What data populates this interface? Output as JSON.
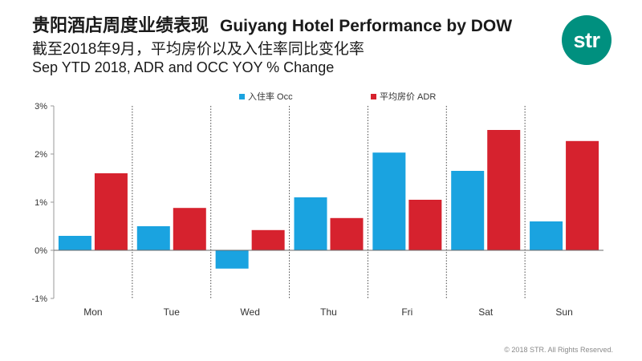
{
  "header": {
    "title_cn": "贵阳酒店周度业绩表现",
    "title_en": "Guiyang Hotel Performance by DOW",
    "subtitle_cn": "截至2018年9月，平均房价以及入住率同比变化率",
    "subtitle_en": "Sep YTD 2018, ADR and OCC YOY % Change"
  },
  "logo": {
    "text": "str",
    "color": "#00907f"
  },
  "footer": {
    "copyright": "© 2018 STR. All Rights Reserved."
  },
  "chart_data": {
    "type": "bar",
    "categories": [
      "Mon",
      "Tue",
      "Wed",
      "Thu",
      "Fri",
      "Sat",
      "Sun"
    ],
    "series": [
      {
        "name": "入住率 Occ",
        "color": "#1aa3e0",
        "values": [
          0.3,
          0.5,
          -0.38,
          1.1,
          2.03,
          1.65,
          0.6
        ]
      },
      {
        "name": "平均房价 ADR",
        "color": "#d6222e",
        "values": [
          1.6,
          0.88,
          0.42,
          0.67,
          1.05,
          2.5,
          2.27
        ]
      }
    ],
    "yticks": [
      "3%",
      "2%",
      "1%",
      "0%",
      "-1%"
    ],
    "ytick_values": [
      3,
      2,
      1,
      0,
      -1
    ],
    "ylim": [
      -1,
      3
    ],
    "unit": "%",
    "legend_position": "top",
    "category_separators": "dotted"
  }
}
